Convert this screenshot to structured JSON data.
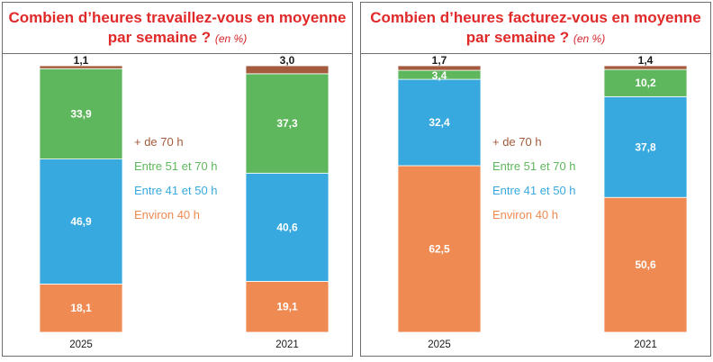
{
  "legend": [
    {
      "label": "+ de 70 h",
      "color": "#a45a3c"
    },
    {
      "label": "Entre 51 et 70 h",
      "color": "#5fb75d"
    },
    {
      "label": "Entre 41 et 50 h",
      "color": "#37a9df"
    },
    {
      "label": "Environ 40 h",
      "color": "#ef8a52"
    }
  ],
  "chart_data": [
    {
      "type": "bar",
      "stacked": true,
      "title": "Combien d’heures travaillez-vous en moyenne par semaine ?",
      "title_unit": "(en %)",
      "categories": [
        "2025",
        "2021"
      ],
      "series": [
        {
          "name": "Environ 40 h",
          "values": [
            18.1,
            19.1
          ],
          "labels": [
            "18,1",
            "19,1"
          ],
          "color": "#ef8a52"
        },
        {
          "name": "Entre 41 et 50 h",
          "values": [
            46.9,
            40.6
          ],
          "labels": [
            "46,9",
            "40,6"
          ],
          "color": "#37a9df"
        },
        {
          "name": "Entre 51 et 70 h",
          "values": [
            33.9,
            37.3
          ],
          "labels": [
            "33,9",
            "37,3"
          ],
          "color": "#5fb75d"
        },
        {
          "name": "+ de 70 h",
          "values": [
            1.1,
            3.0
          ],
          "labels": [
            "1,1",
            "3,0"
          ],
          "color": "#a45a3c"
        }
      ]
    },
    {
      "type": "bar",
      "stacked": true,
      "title": "Combien d’heures facturez-vous en moyenne par semaine ?",
      "title_unit": "(en %)",
      "categories": [
        "2025",
        "2021"
      ],
      "series": [
        {
          "name": "Environ 40 h",
          "values": [
            62.5,
            50.6
          ],
          "labels": [
            "62,5",
            "50,6"
          ],
          "color": "#ef8a52"
        },
        {
          "name": "Entre 41 et 50 h",
          "values": [
            32.4,
            37.8
          ],
          "labels": [
            "32,4",
            "37,8"
          ],
          "color": "#37a9df"
        },
        {
          "name": "Entre 51 et 70 h",
          "values": [
            3.4,
            10.2
          ],
          "labels": [
            "3,4",
            "10,2"
          ],
          "color": "#5fb75d"
        },
        {
          "name": "+ de 70 h",
          "values": [
            1.7,
            1.4
          ],
          "labels": [
            "1,7",
            "1,4"
          ],
          "color": "#a45a3c"
        }
      ]
    }
  ]
}
